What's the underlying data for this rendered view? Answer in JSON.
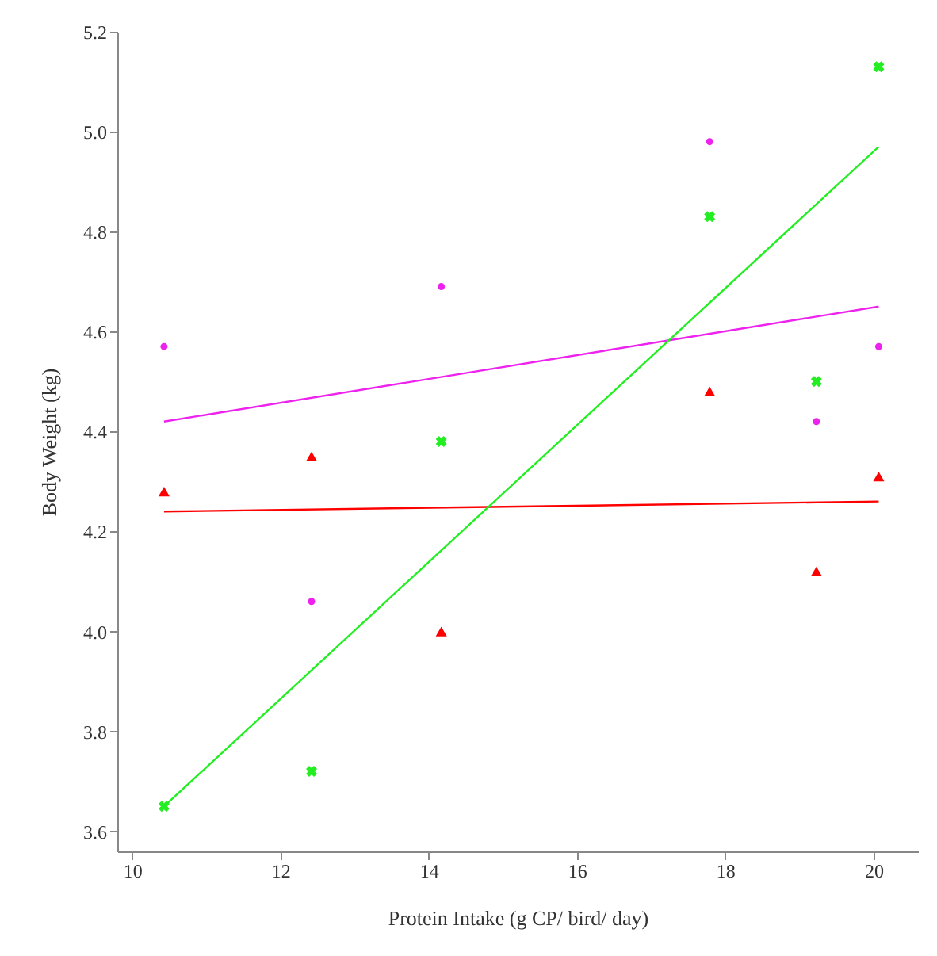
{
  "chart_data": {
    "type": "scatter",
    "xlabel": "Protein Intake (g CP/ bird/ day)",
    "ylabel": "Body Weight (kg)",
    "xlim": [
      9.8,
      20.6
    ],
    "ylim": [
      3.56,
      5.2
    ],
    "xticks": [
      10,
      12,
      14,
      16,
      18,
      20
    ],
    "yticks": [
      3.6,
      3.8,
      {
        "value": 4,
        "label": "4.0"
      },
      4.2,
      4.4,
      4.6,
      4.8,
      {
        "value": 5,
        "label": "5.0"
      },
      5.2
    ],
    "grid": false,
    "series": [
      {
        "marker": "circle",
        "color": "#ee22ee",
        "x": [
          10.43,
          12.42,
          14.17,
          17.79,
          19.23,
          20.07
        ],
        "values": [
          4.57,
          4.06,
          4.69,
          4.98,
          4.42,
          4.57
        ]
      },
      {
        "marker": "triangle",
        "color": "#ff0000",
        "x": [
          10.43,
          12.42,
          14.17,
          17.79,
          19.23,
          20.07
        ],
        "values": [
          4.28,
          4.35,
          4.0,
          4.48,
          4.12,
          4.31
        ]
      },
      {
        "marker": "cross",
        "color": "#22ee22",
        "x": [
          10.43,
          12.42,
          14.17,
          17.79,
          19.23,
          20.07
        ],
        "values": [
          3.65,
          3.72,
          4.38,
          4.83,
          4.5,
          5.13
        ]
      },
      {
        "type": "line",
        "line_style": "solid",
        "color": "#ee22ee",
        "x": [
          10.43,
          20.07
        ],
        "values": [
          4.42,
          4.65
        ]
      },
      {
        "type": "line",
        "line_style": "solid",
        "color": "#ff0000",
        "x": [
          10.43,
          20.07
        ],
        "values": [
          4.24,
          4.26
        ]
      },
      {
        "type": "line",
        "line_style": "solid",
        "color": "#22ee22",
        "x": [
          10.43,
          20.07
        ],
        "values": [
          3.65,
          4.97
        ]
      }
    ]
  }
}
